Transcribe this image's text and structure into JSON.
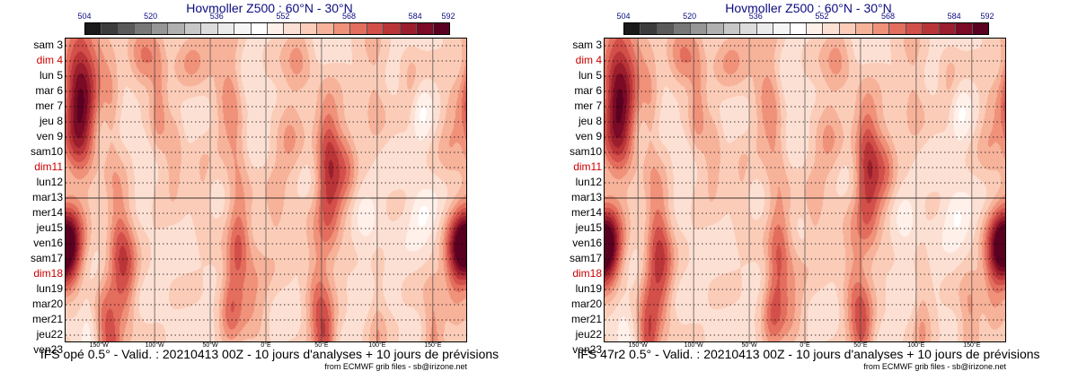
{
  "figure": {
    "chart_data": [
      {
        "type": "heatmap",
        "title": "Hovmoller Z500 : 60°N - 30°N",
        "model_caption": "IFS opé 0.5° - Valid. : 20210413 00Z - 10 jours d'analyses + 10 jours de prévisions",
        "source_credit": "from ECMWF grib files - sb@irizone.net",
        "colorbar": {
          "tick_values": [
            504,
            520,
            536,
            552,
            568,
            584,
            592
          ],
          "range": [
            504,
            592
          ],
          "colors": [
            "#1a1a1a",
            "#3c3c3c",
            "#5a5a5a",
            "#787878",
            "#969696",
            "#b0b0b0",
            "#c8c8c8",
            "#dcdcdc",
            "#ebebeb",
            "#f6f6f6",
            "#ffffff",
            "#fff0ea",
            "#fde0d4",
            "#fbcdb9",
            "#f7b29a",
            "#f0917a",
            "#e36e5e",
            "#d24f4a",
            "#b93538",
            "#9a1e2d",
            "#7a0a25",
            "#5a0020"
          ]
        },
        "y_axis": {
          "labels": [
            {
              "text": "sam 3",
              "sunday": false
            },
            {
              "text": "dim 4",
              "sunday": true
            },
            {
              "text": "lun 5",
              "sunday": false
            },
            {
              "text": "mar 6",
              "sunday": false
            },
            {
              "text": "mer 7",
              "sunday": false
            },
            {
              "text": "jeu 8",
              "sunday": false
            },
            {
              "text": "ven 9",
              "sunday": false
            },
            {
              "text": "sam10",
              "sunday": false
            },
            {
              "text": "dim11",
              "sunday": true
            },
            {
              "text": "lun12",
              "sunday": false
            },
            {
              "text": "mar13",
              "sunday": false
            },
            {
              "text": "mer14",
              "sunday": false
            },
            {
              "text": "jeu15",
              "sunday": false
            },
            {
              "text": "ven16",
              "sunday": false
            },
            {
              "text": "sam17",
              "sunday": false
            },
            {
              "text": "dim18",
              "sunday": true
            },
            {
              "text": "lun19",
              "sunday": false
            },
            {
              "text": "mar20",
              "sunday": false
            },
            {
              "text": "mer21",
              "sunday": false
            },
            {
              "text": "jeu22",
              "sunday": false
            },
            {
              "text": "ven23",
              "sunday": false
            }
          ],
          "analysis_forecast_boundary": "mar13"
        },
        "x_axis": {
          "range_deg": [
            -180,
            180
          ],
          "ticks": [
            {
              "value": -150,
              "label": "150°W"
            },
            {
              "value": -100,
              "label": "100°W"
            },
            {
              "value": -50,
              "label": "50°W"
            },
            {
              "value": 0,
              "label": "0°E"
            },
            {
              "value": 50,
              "label": "50°E"
            },
            {
              "value": 100,
              "label": "100°E"
            },
            {
              "value": 150,
              "label": "150°E"
            }
          ]
        },
        "anomalies": [
          {
            "lon": -167,
            "day": 2.0,
            "wlon": 11,
            "wday": 3.2,
            "amp": 23
          },
          {
            "lon": -168,
            "day": 5.5,
            "wlon": 10,
            "wday": 2.5,
            "amp": 18
          },
          {
            "lon": -178,
            "day": 13.2,
            "wlon": 10,
            "wday": 1.8,
            "amp": 22
          },
          {
            "lon": 178,
            "day": 13.2,
            "wlon": 10,
            "wday": 1.8,
            "amp": 22
          },
          {
            "lon": -148,
            "day": 0.5,
            "wlon": 9,
            "wday": 1.5,
            "amp": 6
          },
          {
            "lon": -139,
            "day": 4.5,
            "wlon": 5,
            "wday": 2.5,
            "amp": 7
          },
          {
            "lon": -110,
            "day": 1.0,
            "wlon": 9,
            "wday": 1.5,
            "amp": 13
          },
          {
            "lon": -97,
            "day": 4.0,
            "wlon": 6,
            "wday": 3.5,
            "amp": 10
          },
          {
            "lon": -83,
            "day": 7.2,
            "wlon": 6,
            "wday": 1.8,
            "amp": 10
          },
          {
            "lon": -134,
            "day": 11.5,
            "wlon": 7,
            "wday": 2.5,
            "amp": 9
          },
          {
            "lon": -127,
            "day": 14.7,
            "wlon": 8,
            "wday": 2.8,
            "amp": 17
          },
          {
            "lon": -143,
            "day": 18.7,
            "wlon": 8,
            "wday": 2.5,
            "amp": 15
          },
          {
            "lon": -138,
            "day": 20.2,
            "wlon": 6,
            "wday": 1.2,
            "amp": 10
          },
          {
            "lon": -67,
            "day": 0.6,
            "wlon": 12,
            "wday": 1.5,
            "amp": 9
          },
          {
            "lon": -33,
            "day": 2.5,
            "wlon": 10,
            "wday": 3.5,
            "amp": 11
          },
          {
            "lon": -25,
            "day": 7.0,
            "wlon": 7,
            "wday": 2.5,
            "amp": 7
          },
          {
            "lon": -57,
            "day": 10.0,
            "wlon": 6,
            "wday": 2.0,
            "amp": 6
          },
          {
            "lon": -25,
            "day": 13.5,
            "wlon": 7,
            "wday": 2.5,
            "amp": 15
          },
          {
            "lon": -33,
            "day": 17.0,
            "wlon": 7,
            "wday": 2.0,
            "amp": 13
          },
          {
            "lon": -10,
            "day": 16.0,
            "wlon": 9,
            "wday": 3.0,
            "amp": 8
          },
          {
            "lon": 8,
            "day": 11.0,
            "wlon": 6,
            "wday": 2.0,
            "amp": 7
          },
          {
            "lon": 30,
            "day": 1.0,
            "wlon": 9,
            "wday": 1.5,
            "amp": 9
          },
          {
            "lon": 20,
            "day": 6.0,
            "wlon": 9,
            "wday": 3.0,
            "amp": 8
          },
          {
            "lon": 57,
            "day": 9.0,
            "wlon": 8,
            "wday": 3.2,
            "amp": 20
          },
          {
            "lon": 55,
            "day": 6.0,
            "wlon": 8,
            "wday": 2.0,
            "amp": 8
          },
          {
            "lon": 72,
            "day": 8.0,
            "wlon": 7,
            "wday": 2.5,
            "amp": 10
          },
          {
            "lon": 46,
            "day": 16.0,
            "wlon": 8,
            "wday": 3.0,
            "amp": 12
          },
          {
            "lon": 53,
            "day": 19.5,
            "wlon": 7,
            "wday": 1.8,
            "amp": 17
          },
          {
            "lon": 100,
            "day": 18.5,
            "wlon": 6,
            "wday": 2.5,
            "amp": 7
          },
          {
            "lon": 97,
            "day": 2.5,
            "wlon": 8,
            "wday": 3.0,
            "amp": 7
          },
          {
            "lon": 130,
            "day": 3.0,
            "wlon": 6,
            "wday": 2.0,
            "amp": 6
          },
          {
            "lon": 150,
            "day": 19.0,
            "wlon": 7,
            "wday": 2.5,
            "amp": 12
          },
          {
            "lon": 165,
            "day": 5.5,
            "wlon": 8,
            "wday": 2.5,
            "amp": 7
          },
          {
            "lon": 168,
            "day": 15.0,
            "wlon": 7,
            "wday": 2.5,
            "amp": 8
          },
          {
            "lon": -20,
            "day": 3.5,
            "wlon": 7,
            "wday": 2.0,
            "amp": -7
          },
          {
            "lon": 138,
            "day": 4.5,
            "wlon": 7,
            "wday": 1.5,
            "amp": -7
          },
          {
            "lon": 140,
            "day": 11.0,
            "wlon": 9,
            "wday": 1.2,
            "amp": -8
          },
          {
            "lon": -160,
            "day": 18.5,
            "wlon": 6,
            "wday": 1.5,
            "amp": -6
          },
          {
            "lon": 90,
            "day": 12.0,
            "wlon": 8,
            "wday": 2.0,
            "amp": -4
          },
          {
            "lon": -105,
            "day": 7.0,
            "wlon": 10,
            "wday": 2.5,
            "amp": -3
          }
        ],
        "base_level": 555
      },
      {
        "type": "heatmap",
        "title": "Hovmoller Z500 : 60°N - 30°N",
        "model_caption": "IFS 47r2 0.5° - Valid. : 20210413 00Z - 10 jours d'analyses + 10 jours de prévisions",
        "source_credit": "from ECMWF grib files - sb@irizone.net",
        "colorbar": {
          "tick_values": [
            504,
            520,
            536,
            552,
            568,
            584,
            592
          ],
          "range": [
            504,
            592
          ],
          "colors": [
            "#1a1a1a",
            "#3c3c3c",
            "#5a5a5a",
            "#787878",
            "#969696",
            "#b0b0b0",
            "#c8c8c8",
            "#dcdcdc",
            "#ebebeb",
            "#f6f6f6",
            "#ffffff",
            "#fff0ea",
            "#fde0d4",
            "#fbcdb9",
            "#f7b29a",
            "#f0917a",
            "#e36e5e",
            "#d24f4a",
            "#b93538",
            "#9a1e2d",
            "#7a0a25",
            "#5a0020"
          ]
        },
        "y_axis": {
          "labels": [
            {
              "text": "sam 3",
              "sunday": false
            },
            {
              "text": "dim 4",
              "sunday": true
            },
            {
              "text": "lun 5",
              "sunday": false
            },
            {
              "text": "mar 6",
              "sunday": false
            },
            {
              "text": "mer 7",
              "sunday": false
            },
            {
              "text": "jeu 8",
              "sunday": false
            },
            {
              "text": "ven 9",
              "sunday": false
            },
            {
              "text": "sam10",
              "sunday": false
            },
            {
              "text": "dim11",
              "sunday": true
            },
            {
              "text": "lun12",
              "sunday": false
            },
            {
              "text": "mar13",
              "sunday": false
            },
            {
              "text": "mer14",
              "sunday": false
            },
            {
              "text": "jeu15",
              "sunday": false
            },
            {
              "text": "ven16",
              "sunday": false
            },
            {
              "text": "sam17",
              "sunday": false
            },
            {
              "text": "dim18",
              "sunday": true
            },
            {
              "text": "lun19",
              "sunday": false
            },
            {
              "text": "mar20",
              "sunday": false
            },
            {
              "text": "mer21",
              "sunday": false
            },
            {
              "text": "jeu22",
              "sunday": false
            },
            {
              "text": "ven23",
              "sunday": false
            }
          ],
          "analysis_forecast_boundary": "mar13"
        },
        "x_axis": {
          "range_deg": [
            -180,
            180
          ],
          "ticks": [
            {
              "value": -150,
              "label": "150°W"
            },
            {
              "value": -100,
              "label": "100°W"
            },
            {
              "value": -50,
              "label": "50°W"
            },
            {
              "value": 0,
              "label": "0°E"
            },
            {
              "value": 50,
              "label": "50°E"
            },
            {
              "value": 100,
              "label": "100°E"
            },
            {
              "value": 150,
              "label": "150°E"
            }
          ]
        },
        "anomalies": [
          {
            "lon": -167,
            "day": 2.0,
            "wlon": 11,
            "wday": 3.2,
            "amp": 23
          },
          {
            "lon": -168,
            "day": 5.5,
            "wlon": 10,
            "wday": 2.5,
            "amp": 18
          },
          {
            "lon": -178,
            "day": 13.2,
            "wlon": 10,
            "wday": 1.8,
            "amp": 22
          },
          {
            "lon": 178,
            "day": 13.2,
            "wlon": 10,
            "wday": 1.8,
            "amp": 22
          },
          {
            "lon": -148,
            "day": 0.5,
            "wlon": 9,
            "wday": 1.5,
            "amp": 6
          },
          {
            "lon": -139,
            "day": 4.5,
            "wlon": 5,
            "wday": 2.5,
            "amp": 7
          },
          {
            "lon": -110,
            "day": 1.0,
            "wlon": 9,
            "wday": 1.5,
            "amp": 13
          },
          {
            "lon": -97,
            "day": 4.0,
            "wlon": 6,
            "wday": 3.5,
            "amp": 10
          },
          {
            "lon": -83,
            "day": 7.2,
            "wlon": 6,
            "wday": 1.8,
            "amp": 10
          },
          {
            "lon": -134,
            "day": 11.5,
            "wlon": 7,
            "wday": 2.5,
            "amp": 9
          },
          {
            "lon": -129,
            "day": 14.5,
            "wlon": 8,
            "wday": 3.0,
            "amp": 16
          },
          {
            "lon": -140,
            "day": 18.0,
            "wlon": 7,
            "wday": 2.5,
            "amp": 13
          },
          {
            "lon": -142,
            "day": 20.0,
            "wlon": 6,
            "wday": 1.5,
            "amp": 11
          },
          {
            "lon": -67,
            "day": 0.6,
            "wlon": 12,
            "wday": 1.5,
            "amp": 9
          },
          {
            "lon": -33,
            "day": 2.5,
            "wlon": 10,
            "wday": 3.5,
            "amp": 11
          },
          {
            "lon": -25,
            "day": 7.0,
            "wlon": 7,
            "wday": 2.5,
            "amp": 7
          },
          {
            "lon": -57,
            "day": 10.0,
            "wlon": 6,
            "wday": 2.0,
            "amp": 6
          },
          {
            "lon": -24,
            "day": 13.8,
            "wlon": 7,
            "wday": 2.5,
            "amp": 14
          },
          {
            "lon": -30,
            "day": 17.5,
            "wlon": 7,
            "wday": 2.0,
            "amp": 12
          },
          {
            "lon": -12,
            "day": 16.5,
            "wlon": 9,
            "wday": 3.0,
            "amp": 8
          },
          {
            "lon": 8,
            "day": 11.0,
            "wlon": 6,
            "wday": 2.0,
            "amp": 7
          },
          {
            "lon": 30,
            "day": 1.0,
            "wlon": 9,
            "wday": 1.5,
            "amp": 9
          },
          {
            "lon": 20,
            "day": 6.0,
            "wlon": 9,
            "wday": 3.0,
            "amp": 8
          },
          {
            "lon": 57,
            "day": 9.0,
            "wlon": 8,
            "wday": 3.2,
            "amp": 20
          },
          {
            "lon": 55,
            "day": 6.0,
            "wlon": 8,
            "wday": 2.0,
            "amp": 8
          },
          {
            "lon": 72,
            "day": 8.0,
            "wlon": 7,
            "wday": 2.5,
            "amp": 10
          },
          {
            "lon": 44,
            "day": 15.5,
            "wlon": 8,
            "wday": 3.0,
            "amp": 11
          },
          {
            "lon": 52,
            "day": 19.0,
            "wlon": 7,
            "wday": 2.0,
            "amp": 15
          },
          {
            "lon": 105,
            "day": 18.0,
            "wlon": 6,
            "wday": 2.5,
            "amp": 8
          },
          {
            "lon": 97,
            "day": 2.5,
            "wlon": 8,
            "wday": 3.0,
            "amp": 7
          },
          {
            "lon": 130,
            "day": 3.0,
            "wlon": 6,
            "wday": 2.0,
            "amp": 6
          },
          {
            "lon": 148,
            "day": 18.5,
            "wlon": 7,
            "wday": 2.5,
            "amp": 11
          },
          {
            "lon": 165,
            "day": 5.5,
            "wlon": 8,
            "wday": 2.5,
            "amp": 7
          },
          {
            "lon": 168,
            "day": 15.5,
            "wlon": 7,
            "wday": 2.5,
            "amp": 8
          },
          {
            "lon": -20,
            "day": 3.5,
            "wlon": 7,
            "wday": 2.0,
            "amp": -7
          },
          {
            "lon": 138,
            "day": 4.5,
            "wlon": 7,
            "wday": 1.5,
            "amp": -7
          },
          {
            "lon": 136,
            "day": 11.0,
            "wlon": 9,
            "wday": 1.2,
            "amp": -8
          },
          {
            "lon": -163,
            "day": 18.5,
            "wlon": 6,
            "wday": 1.5,
            "amp": -6
          },
          {
            "lon": 90,
            "day": 12.5,
            "wlon": 8,
            "wday": 2.0,
            "amp": -4
          },
          {
            "lon": -105,
            "day": 7.0,
            "wlon": 10,
            "wday": 2.5,
            "amp": -3
          }
        ],
        "base_level": 555
      }
    ]
  }
}
